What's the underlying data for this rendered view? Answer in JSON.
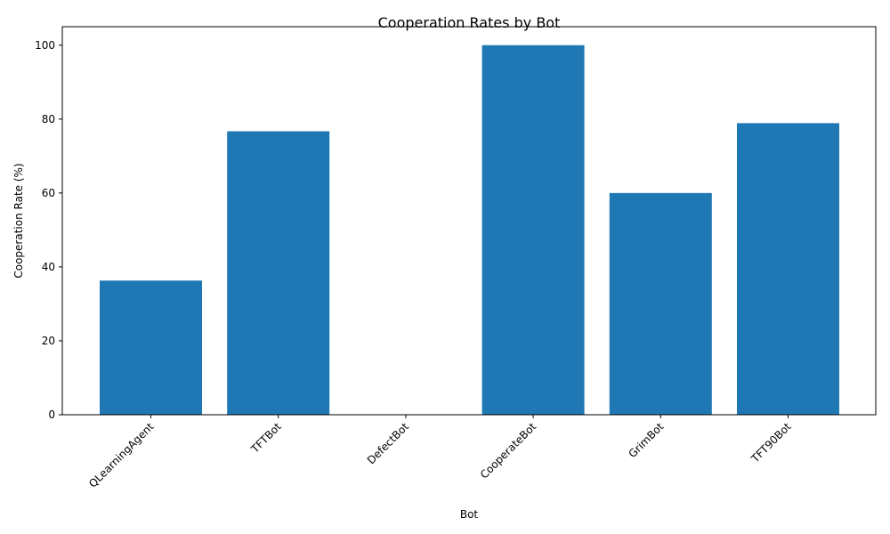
{
  "chart_data": {
    "type": "bar",
    "title": "Cooperation Rates by Bot",
    "xlabel": "Bot",
    "ylabel": "Cooperation Rate (%)",
    "categories": [
      "QLearningAgent",
      "TFTBot",
      "DefectBot",
      "CooperateBot",
      "GrimBot",
      "TFT90Bot"
    ],
    "values": [
      36.3,
      76.7,
      0,
      100,
      60,
      78.9
    ],
    "ylim": [
      0,
      105
    ],
    "yticks": [
      0,
      20,
      40,
      60,
      80,
      100
    ],
    "bar_color": "#1f77b4",
    "grid": false,
    "legend": "none"
  }
}
